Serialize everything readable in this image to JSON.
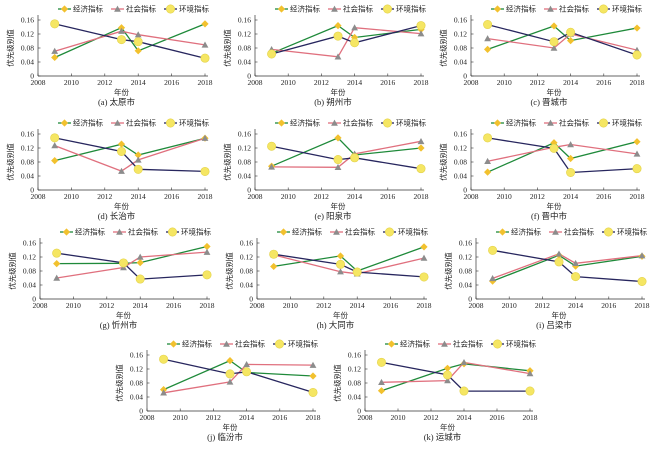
{
  "figure": {
    "legend": [
      "经济指标",
      "社会指标",
      "环境指标"
    ],
    "xlabel": "年份",
    "ylabel": "优先级别值"
  },
  "colors": {
    "economic_line": "#1f8a3a",
    "economic_marker": "#f2c12e",
    "social_line": "#e0707e",
    "social_marker": "#8c8c8c",
    "environment_line": "#27265e",
    "environment_marker": "#f5e663",
    "axis": "#333333"
  },
  "chart_data": [
    {
      "type": "line",
      "caption": "(a) 太原市",
      "x": [
        2009,
        2013,
        2014,
        2018
      ],
      "xlabel": "年份",
      "ylabel": "优先级别值",
      "xlim": [
        2008,
        2018
      ],
      "ylim": [
        0,
        0.16
      ],
      "xticks": [
        "2008",
        "2010",
        "2012",
        "2014",
        "2016",
        "2018"
      ],
      "yticks": [
        "0",
        "0.04",
        "0.08",
        "0.12",
        "0.16"
      ],
      "grid": false,
      "legend_position": "top",
      "series": [
        {
          "name": "经济指标",
          "values": [
            0.053,
            0.138,
            0.072,
            0.149
          ]
        },
        {
          "name": "社会指标",
          "values": [
            0.071,
            0.128,
            0.118,
            0.089
          ]
        },
        {
          "name": "环境指标",
          "values": [
            0.149,
            0.104,
            0.098,
            0.051
          ]
        }
      ]
    },
    {
      "type": "line",
      "caption": "(b) 朔州市",
      "x": [
        2009,
        2013,
        2014,
        2018
      ],
      "xlabel": "年份",
      "ylabel": "优先级别值",
      "xlim": [
        2008,
        2018
      ],
      "ylim": [
        0,
        0.16
      ],
      "xticks": [
        "2008",
        "2010",
        "2012",
        "2014",
        "2016",
        "2018"
      ],
      "yticks": [
        "0",
        "0.04",
        "0.08",
        "0.12",
        "0.16"
      ],
      "grid": false,
      "legend_position": "top",
      "series": [
        {
          "name": "经济指标",
          "values": [
            0.065,
            0.144,
            0.11,
            0.133
          ]
        },
        {
          "name": "社会指标",
          "values": [
            0.076,
            0.055,
            0.138,
            0.121
          ]
        },
        {
          "name": "环境指标",
          "values": [
            0.063,
            0.114,
            0.095,
            0.144
          ]
        }
      ]
    },
    {
      "type": "line",
      "caption": "(c) 晋城市",
      "x": [
        2009,
        2013,
        2014,
        2018
      ],
      "xlabel": "年份",
      "ylabel": "优先级别值",
      "xlim": [
        2008,
        2018
      ],
      "ylim": [
        0,
        0.16
      ],
      "xticks": [
        "2008",
        "2010",
        "2012",
        "2014",
        "2016",
        "2018"
      ],
      "yticks": [
        "0",
        "0.04",
        "0.08",
        "0.12",
        "0.16"
      ],
      "grid": false,
      "legend_position": "top",
      "series": [
        {
          "name": "经济指标",
          "values": [
            0.076,
            0.143,
            0.101,
            0.137
          ]
        },
        {
          "name": "社会指标",
          "values": [
            0.107,
            0.08,
            0.12,
            0.074
          ]
        },
        {
          "name": "环境指标",
          "values": [
            0.147,
            0.098,
            0.125,
            0.06
          ]
        }
      ]
    },
    {
      "type": "line",
      "caption": "(d) 长治市",
      "x": [
        2009,
        2013,
        2014,
        2018
      ],
      "xlabel": "年份",
      "ylabel": "优先级别值",
      "xlim": [
        2008,
        2018
      ],
      "ylim": [
        0,
        0.16
      ],
      "xticks": [
        "2008",
        "2010",
        "2012",
        "2014",
        "2016",
        "2018"
      ],
      "yticks": [
        "0",
        "0.04",
        "0.08",
        "0.12",
        "0.16"
      ],
      "grid": false,
      "legend_position": "top",
      "series": [
        {
          "name": "经济指标",
          "values": [
            0.084,
            0.131,
            0.1,
            0.148
          ]
        },
        {
          "name": "社会指标",
          "values": [
            0.127,
            0.054,
            0.086,
            0.148
          ]
        },
        {
          "name": "环境指标",
          "values": [
            0.149,
            0.11,
            0.059,
            0.053
          ]
        }
      ]
    },
    {
      "type": "line",
      "caption": "(e) 阳泉市",
      "x": [
        2009,
        2013,
        2014,
        2018
      ],
      "xlabel": "年份",
      "ylabel": "优先级别值",
      "xlim": [
        2008,
        2018
      ],
      "ylim": [
        0,
        0.16
      ],
      "xticks": [
        "2008",
        "2010",
        "2012",
        "2014",
        "2016",
        "2018"
      ],
      "yticks": [
        "0",
        "0.04",
        "0.08",
        "0.12",
        "0.16"
      ],
      "grid": false,
      "legend_position": "top",
      "series": [
        {
          "name": "经济指标",
          "values": [
            0.068,
            0.149,
            0.1,
            0.12
          ]
        },
        {
          "name": "社会指标",
          "values": [
            0.066,
            0.065,
            0.103,
            0.139
          ]
        },
        {
          "name": "环境指标",
          "values": [
            0.125,
            0.087,
            0.092,
            0.061
          ]
        }
      ]
    },
    {
      "type": "line",
      "caption": "(f) 晋中市",
      "x": [
        2009,
        2013,
        2014,
        2018
      ],
      "xlabel": "年份",
      "ylabel": "优先级别值",
      "xlim": [
        2008,
        2018
      ],
      "ylim": [
        0,
        0.16
      ],
      "xticks": [
        "2008",
        "2010",
        "2012",
        "2014",
        "2016",
        "2018"
      ],
      "yticks": [
        "0",
        "0.04",
        "0.08",
        "0.12",
        "0.16"
      ],
      "grid": false,
      "legend_position": "top",
      "series": [
        {
          "name": "经济指标",
          "values": [
            0.051,
            0.135,
            0.09,
            0.138
          ]
        },
        {
          "name": "社会指标",
          "values": [
            0.082,
            0.122,
            0.13,
            0.103
          ]
        },
        {
          "name": "环境指标",
          "values": [
            0.149,
            0.119,
            0.05,
            0.061
          ]
        }
      ]
    },
    {
      "type": "line",
      "caption": "(g) 忻州市",
      "x": [
        2009,
        2013,
        2014,
        2018
      ],
      "xlabel": "年份",
      "ylabel": "优先级别值",
      "xlim": [
        2008,
        2018
      ],
      "ylim": [
        0,
        0.16
      ],
      "xticks": [
        "2008",
        "2010",
        "2012",
        "2014",
        "2016",
        "2018"
      ],
      "yticks": [
        "0",
        "0.04",
        "0.08",
        "0.12",
        "0.16"
      ],
      "grid": false,
      "legend_position": "top",
      "series": [
        {
          "name": "经济指标",
          "values": [
            0.101,
            0.102,
            0.104,
            0.15
          ]
        },
        {
          "name": "社会指标",
          "values": [
            0.06,
            0.09,
            0.12,
            0.134
          ]
        },
        {
          "name": "环境指标",
          "values": [
            0.131,
            0.103,
            0.057,
            0.069
          ]
        }
      ]
    },
    {
      "type": "line",
      "caption": "(h) 大同市",
      "x": [
        2009,
        2013,
        2014,
        2018
      ],
      "xlabel": "年份",
      "ylabel": "优先级别值",
      "xlim": [
        2008,
        2018
      ],
      "ylim": [
        0,
        0.16
      ],
      "xticks": [
        "2008",
        "2010",
        "2012",
        "2014",
        "2016",
        "2018"
      ],
      "yticks": [
        "0",
        "0.04",
        "0.08",
        "0.12",
        "0.16"
      ],
      "grid": false,
      "legend_position": "top",
      "series": [
        {
          "name": "经济指标",
          "values": [
            0.093,
            0.123,
            0.08,
            0.149
          ]
        },
        {
          "name": "社会指标",
          "values": [
            0.126,
            0.078,
            0.072,
            0.117
          ]
        },
        {
          "name": "环境指标",
          "values": [
            0.128,
            0.099,
            0.077,
            0.063
          ]
        }
      ]
    },
    {
      "type": "line",
      "caption": "(i) 吕梁市",
      "x": [
        2009,
        2013,
        2014,
        2018
      ],
      "xlabel": "年份",
      "ylabel": "优先级别值",
      "xlim": [
        2008,
        2018
      ],
      "ylim": [
        0,
        0.16
      ],
      "xticks": [
        "2008",
        "2010",
        "2012",
        "2014",
        "2016",
        "2018"
      ],
      "yticks": [
        "0",
        "0.04",
        "0.08",
        "0.12",
        "0.16"
      ],
      "grid": false,
      "legend_position": "top",
      "series": [
        {
          "name": "经济指标",
          "values": [
            0.051,
            0.125,
            0.094,
            0.122
          ]
        },
        {
          "name": "社会指标",
          "values": [
            0.059,
            0.129,
            0.102,
            0.124
          ]
        },
        {
          "name": "环境指标",
          "values": [
            0.139,
            0.106,
            0.064,
            0.05
          ]
        }
      ]
    },
    {
      "type": "line",
      "caption": "(j) 临汾市",
      "x": [
        2009,
        2013,
        2014,
        2018
      ],
      "xlabel": "年份",
      "ylabel": "优先级别值",
      "xlim": [
        2008,
        2018
      ],
      "ylim": [
        0,
        0.16
      ],
      "xticks": [
        "2008",
        "2010",
        "2012",
        "2014",
        "2016",
        "2018"
      ],
      "yticks": [
        "0",
        "0.04",
        "0.08",
        "0.12",
        "0.16"
      ],
      "grid": false,
      "legend_position": "top",
      "series": [
        {
          "name": "经济指标",
          "values": [
            0.061,
            0.144,
            0.11,
            0.1
          ]
        },
        {
          "name": "社会指标",
          "values": [
            0.052,
            0.083,
            0.133,
            0.131
          ]
        },
        {
          "name": "环境指标",
          "values": [
            0.148,
            0.106,
            0.112,
            0.053
          ]
        }
      ]
    },
    {
      "type": "line",
      "caption": "(k) 运城市",
      "x": [
        2009,
        2013,
        2014,
        2018
      ],
      "xlabel": "年份",
      "ylabel": "优先级别值",
      "xlim": [
        2008,
        2018
      ],
      "ylim": [
        0,
        0.16
      ],
      "xticks": [
        "2008",
        "2010",
        "2012",
        "2014",
        "2016",
        "2018"
      ],
      "yticks": [
        "0",
        "0.04",
        "0.08",
        "0.12",
        "0.16"
      ],
      "grid": false,
      "legend_position": "top",
      "series": [
        {
          "name": "经济指标",
          "values": [
            0.058,
            0.122,
            0.135,
            0.115
          ]
        },
        {
          "name": "社会指标",
          "values": [
            0.082,
            0.087,
            0.139,
            0.107
          ]
        },
        {
          "name": "环境指标",
          "values": [
            0.139,
            0.103,
            0.057,
            0.057
          ]
        }
      ]
    }
  ]
}
